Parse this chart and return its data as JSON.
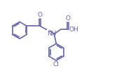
{
  "bg_color": "#ffffff",
  "line_color": "#6666aa",
  "line_width": 1.2,
  "font_size": 6.5,
  "fig_width": 1.8,
  "fig_height": 1.02,
  "dpi": 100,
  "xlim": [
    0,
    10.5
  ],
  "ylim": [
    0,
    6.0
  ]
}
